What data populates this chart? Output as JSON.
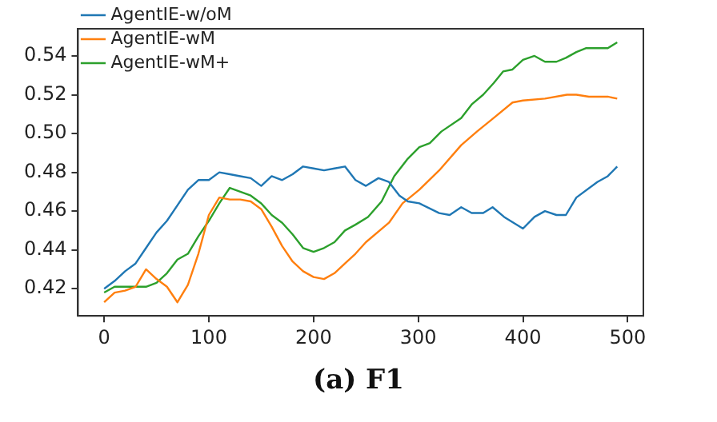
{
  "chart_data": {
    "type": "line",
    "annotations": [
      "(a) F1"
    ],
    "xlim": [
      -25,
      515
    ],
    "xticks": [
      0,
      100,
      200,
      300,
      400,
      500
    ],
    "ylim": [
      0.406,
      0.554
    ],
    "yticks": [
      0.42,
      0.44,
      0.46,
      0.48,
      {
        "value": 0.5,
        "label": "0.50"
      },
      0.52,
      0.54
    ],
    "grid": false,
    "legend": "top left",
    "marker": "none",
    "line_style": "solid",
    "series": [
      {
        "name": "AgentIE-w/oM",
        "color": "#1f77b4",
        "x": [
          0,
          10,
          20,
          30,
          40,
          50,
          60,
          70,
          80,
          90,
          100,
          110,
          120,
          130,
          140,
          150,
          160,
          170,
          180,
          190,
          200,
          210,
          220,
          230,
          240,
          250,
          262,
          272,
          282,
          290,
          301,
          320,
          330,
          341,
          351,
          362,
          371,
          382,
          400,
          411,
          421,
          432,
          441,
          451,
          471,
          481,
          490
        ],
        "values": [
          0.42,
          0.424,
          0.429,
          0.433,
          0.441,
          0.449,
          0.455,
          0.463,
          0.471,
          0.476,
          0.476,
          0.48,
          0.479,
          0.478,
          0.477,
          0.473,
          0.478,
          0.476,
          0.479,
          0.483,
          0.482,
          0.481,
          0.482,
          0.483,
          0.476,
          0.473,
          0.477,
          0.475,
          0.468,
          0.465,
          0.464,
          0.459,
          0.458,
          0.462,
          0.459,
          0.459,
          0.462,
          0.457,
          0.451,
          0.457,
          0.46,
          0.458,
          0.458,
          0.467,
          0.475,
          0.478,
          0.483
        ]
      },
      {
        "name": "AgentIE-wM",
        "color": "#ff7f0e",
        "x": [
          0,
          10,
          20,
          30,
          40,
          50,
          60,
          70,
          80,
          90,
          100,
          110,
          120,
          130,
          140,
          150,
          160,
          170,
          180,
          190,
          200,
          210,
          220,
          230,
          240,
          250,
          272,
          285,
          301,
          320,
          341,
          356,
          372,
          390,
          400,
          421,
          442,
          451,
          463,
          481,
          490
        ],
        "values": [
          0.413,
          0.418,
          0.419,
          0.421,
          0.43,
          0.425,
          0.421,
          0.413,
          0.422,
          0.438,
          0.458,
          0.467,
          0.466,
          0.466,
          0.465,
          0.461,
          0.452,
          0.442,
          0.434,
          0.429,
          0.426,
          0.425,
          0.428,
          0.433,
          0.438,
          0.444,
          0.454,
          0.464,
          0.471,
          0.481,
          0.494,
          0.501,
          0.508,
          0.516,
          0.517,
          0.518,
          0.52,
          0.52,
          0.519,
          0.519,
          0.518
        ]
      },
      {
        "name": "AgentIE-wM+",
        "color": "#2ca02c",
        "x": [
          0,
          10,
          20,
          30,
          40,
          50,
          60,
          70,
          80,
          90,
          100,
          110,
          120,
          130,
          140,
          150,
          160,
          170,
          180,
          190,
          200,
          210,
          220,
          230,
          240,
          252,
          265,
          277,
          290,
          301,
          311,
          322,
          341,
          351,
          362,
          372,
          381,
          390,
          400,
          411,
          421,
          432,
          441,
          451,
          460,
          471,
          481,
          490
        ],
        "values": [
          0.418,
          0.421,
          0.421,
          0.421,
          0.421,
          0.423,
          0.428,
          0.435,
          0.438,
          0.447,
          0.455,
          0.464,
          0.472,
          0.47,
          0.468,
          0.464,
          0.458,
          0.454,
          0.448,
          0.441,
          0.439,
          0.441,
          0.444,
          0.45,
          0.453,
          0.457,
          0.465,
          0.478,
          0.487,
          0.493,
          0.495,
          0.501,
          0.508,
          0.515,
          0.52,
          0.526,
          0.532,
          0.533,
          0.538,
          0.54,
          0.537,
          0.537,
          0.539,
          0.542,
          0.544,
          0.544,
          0.544,
          0.547
        ]
      }
    ]
  }
}
